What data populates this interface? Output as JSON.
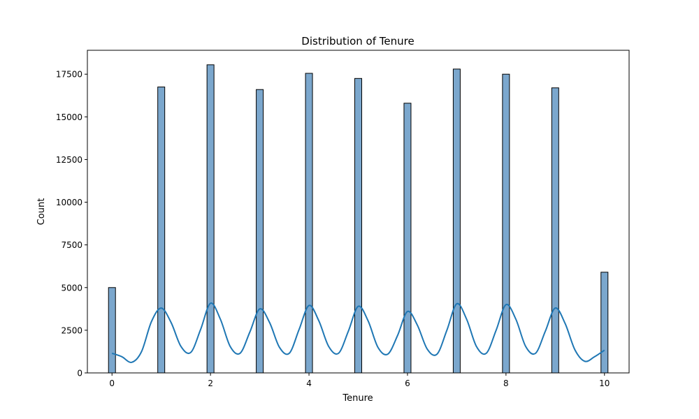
{
  "chart_data": {
    "type": "bar",
    "title": "Distribution of Tenure",
    "xlabel": "Tenure",
    "ylabel": "Count",
    "xlim": [
      -0.5,
      10.5
    ],
    "ylim": [
      0,
      18900
    ],
    "x_ticks": [
      0,
      2,
      4,
      6,
      8,
      10
    ],
    "y_ticks": [
      0,
      2500,
      5000,
      7500,
      10000,
      12500,
      15000,
      17500
    ],
    "categories": [
      0,
      1,
      2,
      3,
      4,
      5,
      6,
      7,
      8,
      9,
      10
    ],
    "values": [
      5000,
      16750,
      18050,
      16600,
      17550,
      17250,
      15800,
      17800,
      17500,
      16700,
      5900
    ],
    "kde": {
      "x": [
        0,
        0.2,
        0.4,
        0.6,
        0.8,
        1.0,
        1.2,
        1.4,
        1.6,
        1.8,
        2.0,
        2.2,
        2.4,
        2.6,
        2.8,
        3.0,
        3.2,
        3.4,
        3.6,
        3.8,
        4.0,
        4.2,
        4.4,
        4.6,
        4.8,
        5.0,
        5.2,
        5.4,
        5.6,
        5.8,
        6.0,
        6.2,
        6.4,
        6.6,
        6.8,
        7.0,
        7.2,
        7.4,
        7.6,
        7.8,
        8.0,
        8.2,
        8.4,
        8.6,
        8.8,
        9.0,
        9.2,
        9.4,
        9.6,
        9.8,
        10.0
      ],
      "y": [
        1150,
        950,
        620,
        1250,
        3000,
        3800,
        2950,
        1550,
        1200,
        2550,
        4080,
        3150,
        1550,
        1150,
        2400,
        3750,
        2950,
        1500,
        1150,
        2550,
        3950,
        3050,
        1550,
        1150,
        2450,
        3900,
        3050,
        1500,
        1100,
        2200,
        3600,
        2800,
        1400,
        1100,
        2500,
        4050,
        3150,
        1550,
        1150,
        2500,
        4000,
        3150,
        1550,
        1150,
        2450,
        3800,
        2900,
        1350,
        680,
        950,
        1330
      ]
    },
    "bar_color": "#7ba7cd",
    "bar_edge_color": "#000000",
    "kde_color": "#1f77b4",
    "grid": false,
    "legend": "none"
  }
}
